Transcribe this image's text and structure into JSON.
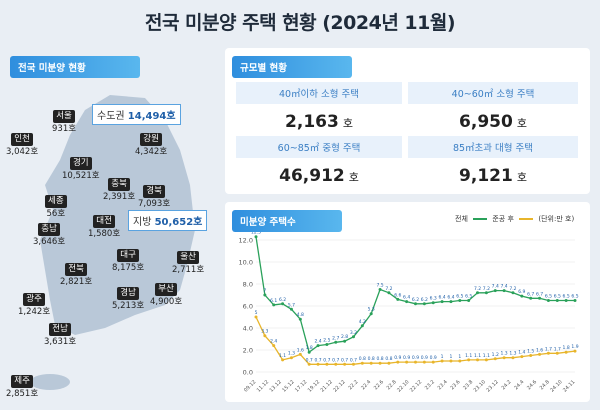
{
  "title": "전국 미분양 주택 현황 (2024년 11월)",
  "map_tab": "전국 미분양 현황",
  "size_tab": "규모별 현황",
  "chart_tab": "미분양 주택수",
  "callouts": {
    "capital": {
      "label": "수도권",
      "value": "14,494호"
    },
    "local": {
      "label": "지방",
      "value": "50,652호"
    }
  },
  "regions": [
    {
      "name": "서울",
      "value": "931호"
    },
    {
      "name": "인천",
      "value": "3,042호"
    },
    {
      "name": "경기",
      "value": "10,521호"
    },
    {
      "name": "강원",
      "value": "4,342호"
    },
    {
      "name": "충북",
      "value": "2,391호"
    },
    {
      "name": "세종",
      "value": "56호"
    },
    {
      "name": "충남",
      "value": "3,646호"
    },
    {
      "name": "대전",
      "value": "1,580호"
    },
    {
      "name": "경북",
      "value": "7,093호"
    },
    {
      "name": "전북",
      "value": "2,821호"
    },
    {
      "name": "대구",
      "value": "8,175호"
    },
    {
      "name": "울산",
      "value": "2,711호"
    },
    {
      "name": "광주",
      "value": "1,242호"
    },
    {
      "name": "경남",
      "value": "5,213호"
    },
    {
      "name": "부산",
      "value": "4,900호"
    },
    {
      "name": "전남",
      "value": "3,631호"
    },
    {
      "name": "제주",
      "value": "2,851호"
    }
  ],
  "size_table": [
    {
      "label": "40㎡이하 소형 주택",
      "value": "2,163",
      "unit": "호"
    },
    {
      "label": "40~60㎡ 소형 주택",
      "value": "6,950",
      "unit": "호"
    },
    {
      "label": "60~85㎡ 중형 주택",
      "value": "46,912",
      "unit": "호"
    },
    {
      "label": "85㎡초과 대형 주택",
      "value": "9,121",
      "unit": "호"
    }
  ],
  "colors": {
    "total": "#2aa15a",
    "post": "#e8b52b",
    "accent": "#2f8ede"
  },
  "chart_data": {
    "type": "line",
    "legend": [
      "전체",
      "준공 후"
    ],
    "unit_note": "(단위:만 호)",
    "ylim": [
      0,
      12
    ],
    "yticks": [
      "0.0",
      "2.0",
      "4.0",
      "6.0",
      "8.0",
      "10.0",
      "12.0"
    ],
    "categories": [
      "09.12",
      "10.12",
      "11.12",
      "12.12",
      "13.12",
      "14.12",
      "15.12",
      "16.12",
      "17.12",
      "18.12",
      "19.12",
      "20.12",
      "21.12",
      "22.12",
      "23.1",
      "23.2",
      "23.3",
      "23.4",
      "23.5",
      "23.6",
      "23.7",
      "23.8",
      "23.9",
      "23.10",
      "23.11",
      "23.12",
      "24.1",
      "24.2",
      "24.3",
      "24.4",
      "24.5",
      "24.6",
      "24.7",
      "24.8",
      "24.9",
      "24.10",
      "24.11"
    ],
    "xtick_labels": [
      "09.12",
      "11.12",
      "13.12",
      "15.12",
      "17.12",
      "19.12",
      "21.12",
      "22.12",
      "22.2",
      "22.4",
      "22.6",
      "22.8",
      "22.10",
      "22.12",
      "23.2",
      "23.4",
      "23.6",
      "23.8",
      "23.10",
      "23.12",
      "24.2",
      "24.4",
      "24.6",
      "24.8",
      "24.10",
      "24.11"
    ],
    "series": [
      {
        "name": "전체",
        "values": [
          12.3,
          7.0,
          6.1,
          6.2,
          5.7,
          4.8,
          1.8,
          2.4,
          2.5,
          2.7,
          2.8,
          3.2,
          4.2,
          5.3,
          7.5,
          7.2,
          6.6,
          6.4,
          6.2,
          6.2,
          6.3,
          6.4,
          6.4,
          6.5,
          6.5,
          7.2,
          7.2,
          7.4,
          7.4,
          7.2,
          6.9,
          6.7,
          6.7,
          6.5,
          6.5,
          6.5,
          6.5
        ]
      },
      {
        "name": "준공 후",
        "values": [
          5.0,
          3.3,
          2.4,
          1.1,
          1.3,
          1.6,
          0.7,
          0.7,
          0.7,
          0.7,
          0.7,
          0.7,
          0.8,
          0.8,
          0.8,
          0.8,
          0.9,
          0.9,
          0.9,
          0.9,
          0.9,
          1.0,
          1.0,
          1.0,
          1.1,
          1.1,
          1.1,
          1.2,
          1.3,
          1.3,
          1.4,
          1.5,
          1.6,
          1.7,
          1.7,
          1.8,
          1.9
        ]
      }
    ]
  }
}
